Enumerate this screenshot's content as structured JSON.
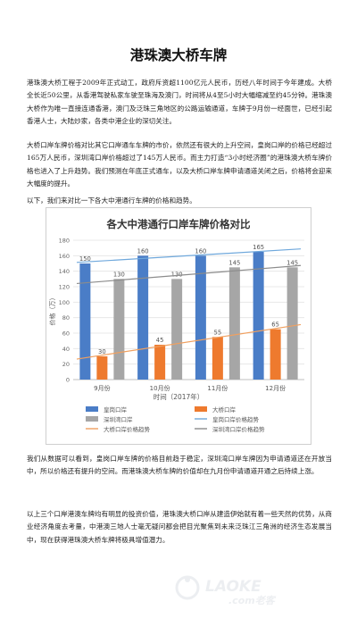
{
  "article": {
    "title": "港珠澳大桥车牌",
    "paragraphs": [
      "港珠澳大桥工程于2009年正式动工，政府斥资超1100亿元人民币，历经八年时间于今年建成。大桥全长近50公里，从香港驾驶私家车驶至珠海及澳门，时间将从4至5小时大幅缩减至约45分钟。港珠澳大桥作为唯一直接连通香港，澳门及泛珠三角地区的公路运输通道，车牌于9月份一经面世，已经引起香港人士，大陆炒家，各类中港企业的深切关注。",
      "大桥口岸车牌价格对比其它口岸通车车牌的市价，依然还有很大的上升空间，皇岗口岸的价格已经超过165万人民币，深圳湾口岸价格超过了145万人民币。而主力打造“3小时经济圈”的港珠澳大桥车牌价格也进入了上升趋势。我们预测在年底正式通车，以及大桥口岸车牌申请通道关闭之后，价格将会迎来大幅度的提升。",
      "以下，我们来对比一下各大中港通行车牌的价格和趋势。",
      "我们从数据可以看到，皇岗口岸车牌的价格目前趋于稳定，深圳湾口岸车牌因为申请通道还在开放当中，所以价格还有提升的空间。而港珠澳大桥车牌的价值却在九月份申请通道开通之后持续上涨。",
      "以上三个口岸港澳车牌均有明显的投资价值，港珠澳大桥口岸从建造伊始就有着一些天然的优势，从商业经济角度去考量，中港澳三地人士毫无疑问都会把目光聚焦到未来泛珠江三角洲的经济生态发展当中，现在获得港珠澳大桥车牌将极具增值潜力。"
    ]
  },
  "chart_data": {
    "type": "bar",
    "title": "各大中港通行口岸车牌价格对比",
    "xlabel": "时间（2017年）",
    "ylabel": "价格（万）",
    "categories": [
      "9月份",
      "10月份",
      "11月份",
      "12月份"
    ],
    "ylim": [
      0,
      180
    ],
    "yticks": [
      0,
      20,
      40,
      60,
      80,
      100,
      120,
      140,
      160,
      180
    ],
    "grid": true,
    "legend_position": "bottom",
    "series": [
      {
        "name": "皇岗口岸",
        "values": [
          150,
          160,
          160,
          165
        ],
        "color": "#4a7dc7"
      },
      {
        "name": "深圳湾口岸",
        "values": [
          130,
          130,
          145,
          145
        ],
        "color": "#a6a6a6"
      },
      {
        "name": "大桥口岸",
        "values": [
          30,
          45,
          55,
          65
        ],
        "color": "#ee7a2e"
      }
    ],
    "trendlines": [
      {
        "name": "皇岗口岸价格趋势",
        "series": "皇岗口岸",
        "color": "#6fa8dc"
      },
      {
        "name": "深圳湾口岸价格趋势",
        "series": "深圳湾口岸",
        "color": "#8c8c8c"
      },
      {
        "name": "大桥口岸价格趋势",
        "series": "大桥口岸",
        "color": "#f0a060"
      }
    ]
  },
  "watermark": {
    "brand": "LAOKE",
    "sub": ".com老客"
  }
}
